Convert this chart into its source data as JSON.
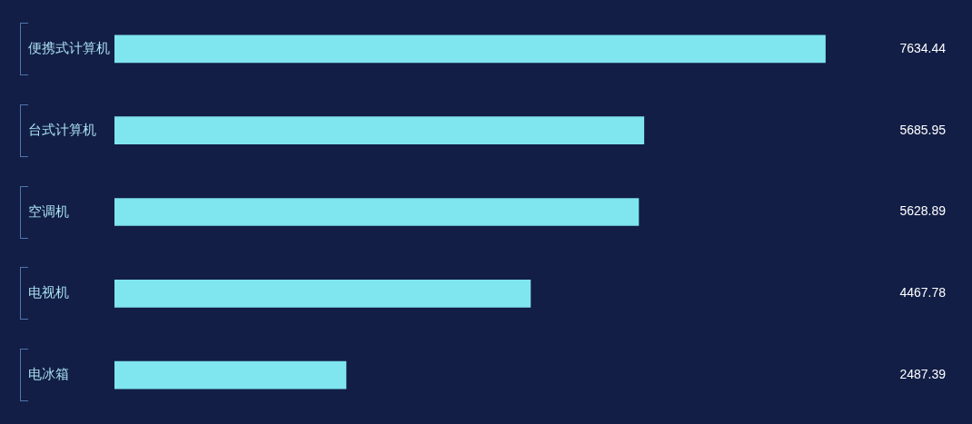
{
  "chart_data": {
    "type": "bar",
    "orientation": "horizontal",
    "categories": [
      "便携式计算机",
      "台式计算机",
      "空调机",
      "电视机",
      "电冰箱"
    ],
    "values": [
      7634.44,
      5685.95,
      5628.89,
      4467.78,
      2487.39
    ],
    "color": "#7fe5ee",
    "data_labels": true,
    "tick_labels": "y"
  }
}
